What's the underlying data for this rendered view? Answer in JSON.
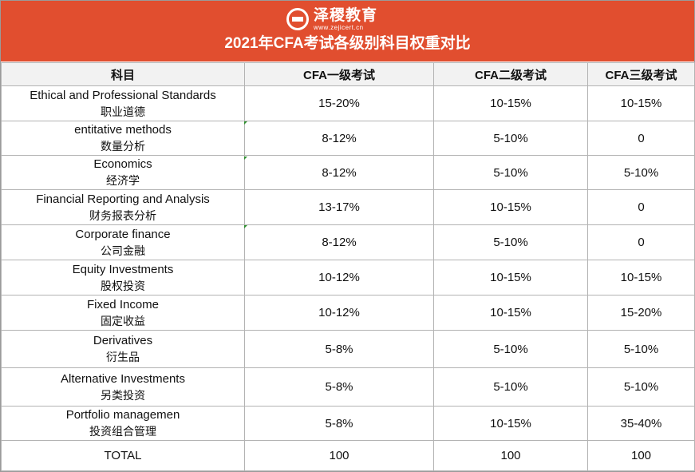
{
  "header": {
    "brand_name": "泽稷教育",
    "brand_url": "www.zejicert.cn",
    "title": "2021年CFA考试各级别科目权重对比",
    "background_color": "#e14e2f"
  },
  "table": {
    "columns": [
      "科目",
      "CFA一级考试",
      "CFA二级考试",
      "CFA三级考试"
    ],
    "rows": [
      {
        "en": "Ethical and Professional Standards",
        "cn": "职业道德",
        "l1": "15-20%",
        "l2": "10-15%",
        "l3": "10-15%"
      },
      {
        "en": "entitative methods",
        "cn": "数量分析",
        "l1": "8-12%",
        "l2": "5-10%",
        "l3": "0"
      },
      {
        "en": "Economics",
        "cn": "经济学",
        "l1": "8-12%",
        "l2": "5-10%",
        "l3": "5-10%"
      },
      {
        "en": "Financial Reporting and Analysis",
        "cn": "财务报表分析",
        "l1": "13-17%",
        "l2": "10-15%",
        "l3": "0"
      },
      {
        "en": "Corporate finance",
        "cn": "公司金融",
        "l1": "8-12%",
        "l2": "5-10%",
        "l3": "0"
      },
      {
        "en": "Equity Investments",
        "cn": "股权投资",
        "l1": "10-12%",
        "l2": "10-15%",
        "l3": "10-15%"
      },
      {
        "en": "Fixed Income",
        "cn": "固定收益",
        "l1": "10-12%",
        "l2": "10-15%",
        "l3": "15-20%"
      },
      {
        "en": "Derivatives",
        "cn": "衍生品",
        "l1": "5-8%",
        "l2": "5-10%",
        "l3": "5-10%"
      },
      {
        "en": "Alternative Investments",
        "cn": "另类投资",
        "l1": "5-8%",
        "l2": "5-10%",
        "l3": "5-10%"
      },
      {
        "en": "Portfolio managemen",
        "cn": "投资组合管理",
        "l1": "5-8%",
        "l2": "10-15%",
        "l3": "35-40%"
      }
    ],
    "total": {
      "label": "TOTAL",
      "l1": "100",
      "l2": "100",
      "l3": "100"
    }
  }
}
